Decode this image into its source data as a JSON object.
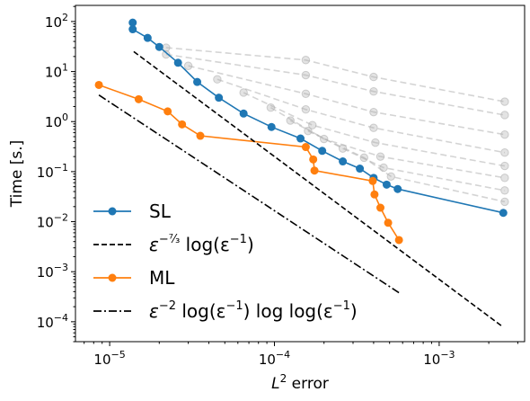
{
  "chart_data": {
    "type": "line",
    "xscale": "log",
    "yscale": "log",
    "xlim": [
      6.2e-06,
      0.0033
    ],
    "ylim": [
      4e-05,
      210
    ],
    "xlabel": "L² error",
    "xlabel_parts": {
      "prefix": "L",
      "sup": "2",
      "suffix": " error"
    },
    "ylabel": "Time [s.]",
    "xticks": [
      {
        "value": 1e-05,
        "base": "10",
        "exp": "−5"
      },
      {
        "value": 0.0001,
        "base": "10",
        "exp": "−4"
      },
      {
        "value": 0.001,
        "base": "10",
        "exp": "−3"
      }
    ],
    "yticks": [
      {
        "value": 0.0001,
        "base": "10",
        "exp": "−4"
      },
      {
        "value": 0.001,
        "base": "10",
        "exp": "−3"
      },
      {
        "value": 0.01,
        "base": "10",
        "exp": "−2"
      },
      {
        "value": 0.1,
        "base": "10",
        "exp": "−1"
      },
      {
        "value": 1,
        "base": "10",
        "exp": "0"
      },
      {
        "value": 10,
        "base": "10",
        "exp": "1"
      },
      {
        "value": 100,
        "base": "10",
        "exp": "2"
      }
    ],
    "grid": false,
    "legend_position": "lower-left",
    "background_series": [
      {
        "color": "#b0b0b0",
        "x": [
          2.2e-05,
          0.000155,
          0.0004,
          0.0025
        ],
        "y": [
          30,
          17,
          7.8,
          2.5
        ]
      },
      {
        "color": "#b0b0b0",
        "x": [
          2.2e-05,
          0.000155,
          0.0004,
          0.0025
        ],
        "y": [
          22,
          8.5,
          4.0,
          1.35
        ]
      },
      {
        "color": "#b0b0b0",
        "x": [
          3e-05,
          0.000155,
          0.0004,
          0.0025
        ],
        "y": [
          13,
          3.6,
          1.55,
          0.55
        ]
      },
      {
        "color": "#b0b0b0",
        "x": [
          4.5e-05,
          0.000155,
          0.0004,
          0.0025
        ],
        "y": [
          7,
          1.75,
          0.75,
          0.24
        ]
      },
      {
        "color": "#b0b0b0",
        "x": [
          6.5e-05,
          0.00017,
          0.00041,
          0.0025
        ],
        "y": [
          3.8,
          0.85,
          0.38,
          0.13
        ]
      },
      {
        "color": "#b0b0b0",
        "x": [
          9.5e-05,
          0.0002,
          0.00044,
          0.0025
        ],
        "y": [
          1.9,
          0.45,
          0.2,
          0.075
        ]
      },
      {
        "color": "#b0b0b0",
        "x": [
          0.000125,
          0.00026,
          0.00046,
          0.0025
        ],
        "y": [
          1.05,
          0.29,
          0.12,
          0.042
        ]
      },
      {
        "color": "#b0b0b0",
        "x": [
          0.00016,
          0.00035,
          0.00051,
          0.0025
        ],
        "y": [
          0.65,
          0.19,
          0.08,
          0.025
        ]
      }
    ],
    "series": [
      {
        "name": "SL",
        "color": "#1f77b4",
        "style": "solid-marker",
        "x": [
          1.38e-05,
          1.38e-05,
          1.7e-05,
          2e-05,
          2.6e-05,
          3.4e-05,
          4.6e-05,
          6.5e-05,
          9.6e-05,
          0.000144,
          0.000195,
          0.00026,
          0.00033,
          0.0004,
          0.00048,
          0.00056,
          0.00245
        ],
        "y": [
          95,
          70,
          47,
          31,
          15,
          6.2,
          3.0,
          1.45,
          0.78,
          0.46,
          0.26,
          0.16,
          0.115,
          0.075,
          0.055,
          0.045,
          0.015
        ]
      },
      {
        "name": "ML",
        "color": "#ff7f0e",
        "style": "solid-marker",
        "x": [
          8.6e-06,
          1.5e-05,
          2.25e-05,
          2.75e-05,
          3.55e-05,
          0.000155,
          0.000172,
          0.000175,
          0.000395,
          0.000405,
          0.00044,
          0.00049,
          0.00057
        ],
        "y": [
          5.4,
          2.8,
          1.6,
          0.88,
          0.52,
          0.31,
          0.175,
          0.105,
          0.065,
          0.035,
          0.019,
          0.0095,
          0.0043
        ]
      },
      {
        "name": "ε^{-7/3} log(ε^{-1})",
        "color": "#000000",
        "style": "dashed",
        "x": [
          1.4e-05,
          0.00245
        ],
        "y": [
          25,
          7.8e-05
        ]
      },
      {
        "name": "ε^{-2} log(ε^{-1}) log log(ε^{-1})",
        "color": "#000000",
        "style": "dashdot",
        "x": [
          8.6e-06,
          0.00057
        ],
        "y": [
          3.4,
          0.00038
        ]
      }
    ],
    "legend": [
      {
        "series_index": 0,
        "label": "SL"
      },
      {
        "series_index": 2,
        "label_parts": {
          "eps": "ε",
          "exp": "−⁷⁄₃",
          "rest": " log(ε",
          "exp2": "−1",
          "close": ")"
        }
      },
      {
        "series_index": 1,
        "label": "ML"
      },
      {
        "series_index": 3,
        "label_parts": {
          "eps": "ε",
          "exp": "−2",
          "rest": " log(ε",
          "exp2": "−1",
          "mid": ") log log(ε",
          "exp3": "−1",
          "close": ")"
        }
      }
    ]
  }
}
